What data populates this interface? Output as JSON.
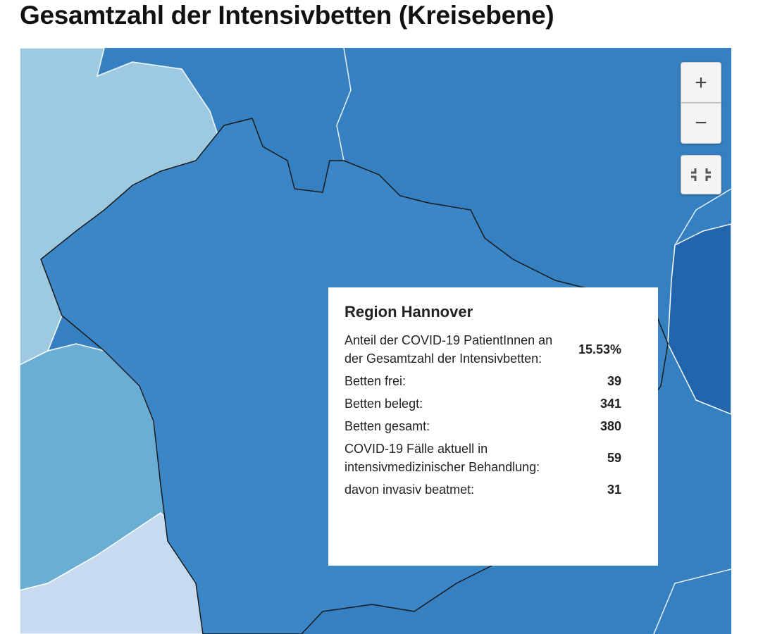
{
  "title": "Gesamtzahl der Intensivbetten (Kreisebene)",
  "map_controls": {
    "zoom_in": "+",
    "zoom_out": "−"
  },
  "tooltip": {
    "title": "Region Hannover",
    "rows": [
      [
        "Anteil der COVID-19 PatientInnen an der Gesamtzahl der Intensivbetten:",
        "15.53%"
      ],
      [
        "Betten frei:",
        "39"
      ],
      [
        "Betten belegt:",
        "341"
      ],
      [
        "Betten gesamt:",
        "380"
      ],
      [
        "COVID-19 Fälle aktuell in intensivmedizinischer Behandlung:",
        "59"
      ],
      [
        "davon invasiv beatmet:",
        "31"
      ]
    ]
  }
}
